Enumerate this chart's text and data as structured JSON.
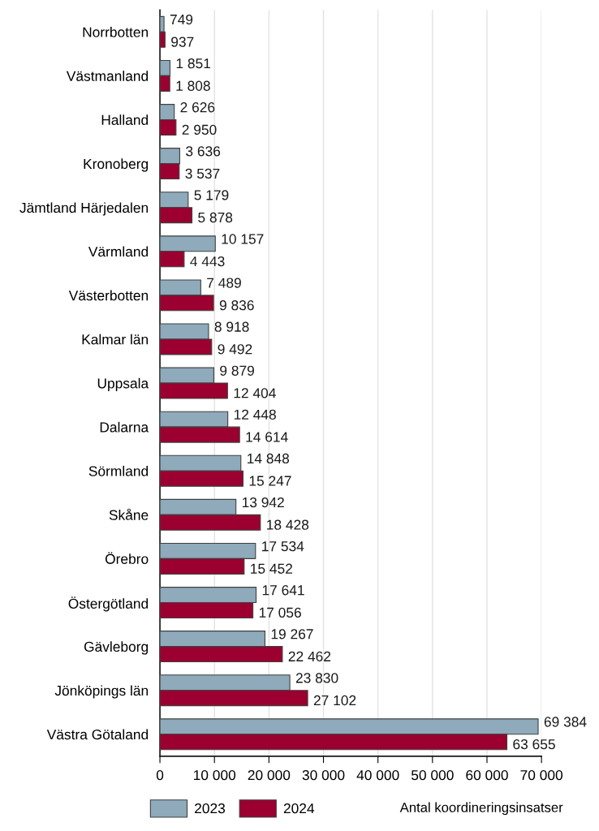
{
  "chart_data": {
    "type": "bar",
    "orientation": "horizontal",
    "xlabel": "Antal koordineringsinsatser",
    "categories": [
      "Norrbotten",
      "Västmanland",
      "Halland",
      "Kronoberg",
      "Jämtland Härjedalen",
      "Värmland",
      "Västerbotten",
      "Kalmar län",
      "Uppsala",
      "Dalarna",
      "Sörmland",
      "Skåne",
      "Örebro",
      "Östergötland",
      "Gävleborg",
      "Jönköpings län",
      "Västra Götaland"
    ],
    "series": [
      {
        "name": "2023",
        "color": "#8eaabb",
        "values": [
          749,
          1851,
          2626,
          3636,
          5179,
          10157,
          7489,
          8918,
          9879,
          12448,
          14848,
          13942,
          17534,
          17641,
          19267,
          23830,
          69384
        ],
        "value_labels": [
          "749",
          "1 851",
          "2 626",
          "3 636",
          "5 179",
          "10 157",
          "7 489",
          "8 918",
          "9 879",
          "12 448",
          "14 848",
          "13 942",
          "17 534",
          "17 641",
          "19 267",
          "23 830",
          "69 384"
        ]
      },
      {
        "name": "2024",
        "color": "#9b0030",
        "values": [
          937,
          1808,
          2950,
          3537,
          5878,
          4443,
          9836,
          9492,
          12404,
          14614,
          15247,
          18428,
          15452,
          17056,
          22462,
          27102,
          63655
        ],
        "value_labels": [
          "937",
          "1 808",
          "2 950",
          "3 537",
          "5 878",
          "4 443",
          "9 836",
          "9 492",
          "12 404",
          "14 614",
          "15 247",
          "18 428",
          "15 452",
          "17 056",
          "22 462",
          "27 102",
          "63 655"
        ]
      }
    ],
    "xlim": [
      0,
      70000
    ],
    "xticks": [
      0,
      {
        "value": 10000,
        "label": "10 000"
      },
      {
        "value": 20000,
        "label": "20 000"
      },
      {
        "value": 30000,
        "label": "30 000"
      },
      {
        "value": 40000,
        "label": "40 000"
      },
      {
        "value": 50000,
        "label": "50 000"
      },
      {
        "value": 60000,
        "label": "60 000"
      },
      {
        "value": 70000,
        "label": "70 000"
      }
    ],
    "grid": "x",
    "legend": "bottom left"
  }
}
